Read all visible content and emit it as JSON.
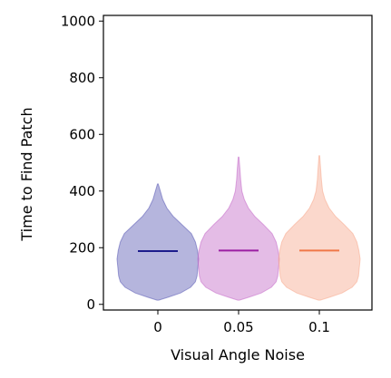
{
  "chart_data": {
    "type": "violin",
    "title": "",
    "xlabel": "Visual Angle Noise",
    "ylabel": "Time to Find Patch",
    "categories": [
      "0",
      "0.05",
      "0.1"
    ],
    "ylim": [
      -20,
      1020
    ],
    "yticks": [
      0,
      200,
      400,
      600,
      800,
      1000
    ],
    "yticks_labels": [
      "0",
      "200",
      "400",
      "600",
      "800",
      "1000"
    ],
    "grid": false,
    "violins": [
      {
        "category": "0",
        "median": 188,
        "min": 15,
        "max": 425,
        "color": "#5a5ab4",
        "median_color": "#1c1c8c",
        "profile": [
          [
            15,
            0.02
          ],
          [
            25,
            0.25
          ],
          [
            40,
            0.55
          ],
          [
            60,
            0.8
          ],
          [
            80,
            0.92
          ],
          [
            100,
            0.96
          ],
          [
            130,
            0.98
          ],
          [
            160,
            1.0
          ],
          [
            190,
            0.97
          ],
          [
            220,
            0.92
          ],
          [
            250,
            0.82
          ],
          [
            280,
            0.6
          ],
          [
            310,
            0.38
          ],
          [
            340,
            0.22
          ],
          [
            370,
            0.12
          ],
          [
            400,
            0.06
          ],
          [
            425,
            0.01
          ]
        ]
      },
      {
        "category": "0.05",
        "median": 190,
        "min": 15,
        "max": 520,
        "color": "#c46ac8",
        "median_color": "#9b1fa2",
        "profile": [
          [
            15,
            0.02
          ],
          [
            25,
            0.25
          ],
          [
            40,
            0.55
          ],
          [
            60,
            0.8
          ],
          [
            80,
            0.92
          ],
          [
            100,
            0.96
          ],
          [
            130,
            0.98
          ],
          [
            160,
            1.0
          ],
          [
            190,
            0.97
          ],
          [
            220,
            0.92
          ],
          [
            250,
            0.82
          ],
          [
            280,
            0.62
          ],
          [
            310,
            0.4
          ],
          [
            340,
            0.24
          ],
          [
            370,
            0.14
          ],
          [
            400,
            0.08
          ],
          [
            440,
            0.05
          ],
          [
            480,
            0.03
          ],
          [
            520,
            0.01
          ]
        ]
      },
      {
        "category": "0.1",
        "median": 190,
        "min": 15,
        "max": 525,
        "color": "#f7a98e",
        "median_color": "#f07848",
        "profile": [
          [
            15,
            0.02
          ],
          [
            25,
            0.25
          ],
          [
            40,
            0.55
          ],
          [
            60,
            0.8
          ],
          [
            80,
            0.92
          ],
          [
            100,
            0.96
          ],
          [
            130,
            0.98
          ],
          [
            160,
            1.0
          ],
          [
            190,
            0.97
          ],
          [
            220,
            0.92
          ],
          [
            250,
            0.82
          ],
          [
            280,
            0.62
          ],
          [
            310,
            0.4
          ],
          [
            340,
            0.24
          ],
          [
            370,
            0.14
          ],
          [
            400,
            0.08
          ],
          [
            440,
            0.05
          ],
          [
            480,
            0.03
          ],
          [
            525,
            0.01
          ]
        ]
      }
    ]
  }
}
